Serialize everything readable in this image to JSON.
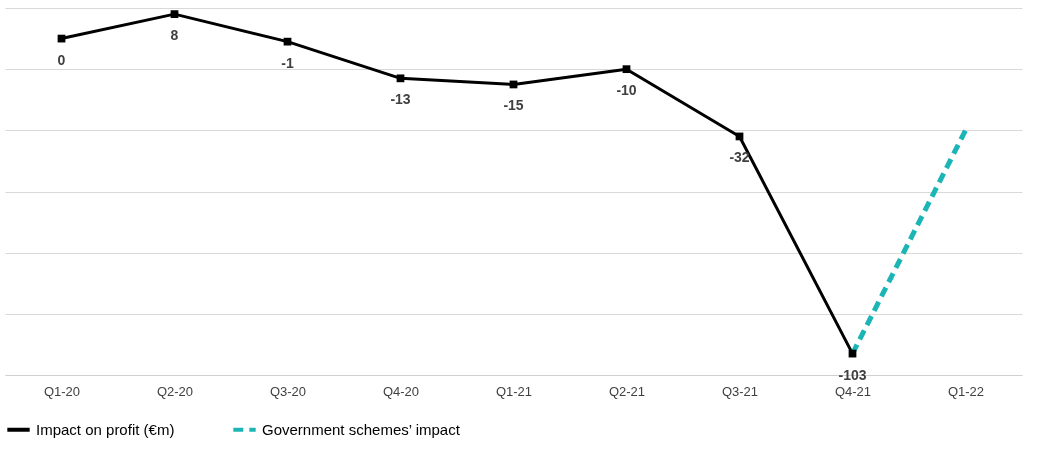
{
  "chart_data": {
    "type": "line",
    "categories": [
      "Q1-20",
      "Q2-20",
      "Q3-20",
      "Q4-20",
      "Q1-21",
      "Q2-21",
      "Q3-21",
      "Q4-21",
      "Q1-22"
    ],
    "series": [
      {
        "name": "Impact on profit (€m)",
        "color": "#000000",
        "marker": "square",
        "line_style": "solid",
        "values": [
          0,
          8,
          -1,
          -13,
          -15,
          -10,
          -32,
          -103,
          null
        ],
        "value_labels": [
          "0",
          "8",
          "-1",
          "-13",
          "-15",
          "-10",
          "-32",
          "-103",
          null
        ]
      },
      {
        "name": "Government schemes’ impact",
        "color": "#1cb5b5",
        "marker": "none",
        "line_style": "dashed",
        "values": [
          null,
          null,
          null,
          null,
          null,
          null,
          null,
          -103,
          -30
        ]
      }
    ],
    "ylim": [
      -110,
      10
    ],
    "yticks": [
      {
        "value": 10,
        "label": null
      },
      {
        "value": -10,
        "label": null
      },
      {
        "value": -30,
        "label": null
      },
      {
        "value": -50,
        "label": null
      },
      {
        "value": -70,
        "label": null
      },
      {
        "value": -90,
        "label": null
      },
      {
        "value": -110,
        "label": null
      }
    ],
    "grid": "y",
    "legend": "bottom",
    "tick_labels": "x"
  }
}
